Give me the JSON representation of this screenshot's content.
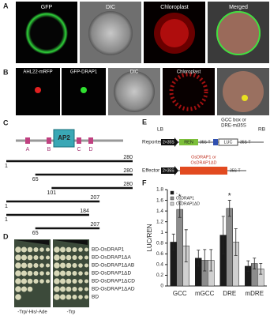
{
  "panels": {
    "a": "A",
    "b": "B",
    "c": "C",
    "d": "D",
    "e": "E",
    "f": "F"
  },
  "panel_a": {
    "labels": [
      "GFP",
      "DIC",
      "Chloroplast",
      "Merged"
    ]
  },
  "panel_b": {
    "labels": [
      "AHL22-mRFP",
      "GFP-DRAP1",
      "DIC",
      "Chloroplast"
    ]
  },
  "panel_c": {
    "domains": [
      "A",
      "B",
      "AP2",
      "C",
      "D"
    ],
    "constructs": [
      {
        "start": 1,
        "end": 280
      },
      {
        "start": 65,
        "end": 280
      },
      {
        "start": 101,
        "end": 280
      },
      {
        "start": 1,
        "end": 207
      },
      {
        "start": 1,
        "end": 184
      },
      {
        "start": 65,
        "end": 207
      }
    ]
  },
  "panel_d": {
    "strains": [
      "BD-OsDRAP1",
      "BD-OsDRAP1ΔA",
      "BD-OsDRAP1ΔAB",
      "BD-OsDRAP1ΔD",
      "BD-OsDRAP1ΔCD",
      "BD-OsDRAP1ΔAD",
      "BD"
    ],
    "media": [
      "-Trp/-His/-Ade",
      "-Trp"
    ]
  },
  "panel_e": {
    "lb": "LB",
    "rb": "RB",
    "promoter_label": [
      "GCC box or",
      "DRE-mi35S"
    ],
    "reporter": "Reporter",
    "effector": "Effector",
    "reporter_parts": [
      "2×35S",
      "REN",
      "35S-T",
      "LUC",
      "35S-T"
    ],
    "effector_parts": [
      "2×35S",
      "35S-T"
    ],
    "effector_gene": [
      "OsDRAP1 or",
      "OsDRAP1ΔD"
    ]
  },
  "chart_data": {
    "type": "bar",
    "y_label": "LUC/REN",
    "categories": [
      "GCC",
      "mGCC",
      "DRE",
      "mDRE"
    ],
    "series": [
      {
        "name": "-",
        "color": "#1a1a1a",
        "values": [
          0.82,
          0.52,
          0.95,
          0.37
        ],
        "errors": [
          0.15,
          0.15,
          0.35,
          0.1
        ]
      },
      {
        "name": "OsDRAP1",
        "color": "#8c8c8c",
        "values": [
          1.43,
          0.48,
          1.45,
          0.42
        ],
        "errors": [
          0.15,
          0.2,
          0.15,
          0.1
        ]
      },
      {
        "name": "OsDRAP1ΔD",
        "color": "#d0d0d0",
        "values": [
          0.75,
          0.48,
          0.82,
          0.32
        ],
        "errors": [
          0.3,
          0.2,
          0.25,
          0.1
        ]
      }
    ],
    "annotations": [
      {
        "text": "*",
        "category": 0,
        "series": 1
      },
      {
        "text": "*",
        "category": 2,
        "series": 1
      }
    ],
    "ylim": [
      0,
      1.8
    ],
    "yticks": [
      0,
      0.2,
      0.4,
      0.6,
      0.8,
      1,
      1.2,
      1.4,
      1.6,
      1.8
    ],
    "legend": "top-left"
  }
}
